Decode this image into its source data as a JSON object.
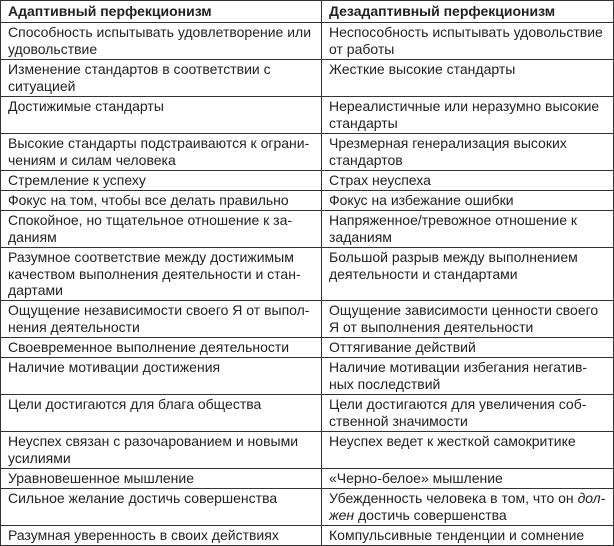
{
  "table": {
    "headers": [
      "Адаптивный перфекционизм",
      "Дезадаптивный перфекционизм"
    ],
    "rows": [
      [
        "Способность испытывать удовлетворение или\nудовольствие",
        "Неспособность испытывать удовольствие\nот работы"
      ],
      [
        "Изменение стандартов в соответствии с\nситуацией",
        "Жесткие высокие стандарты"
      ],
      [
        "Достижимые стандарты",
        "Нереалистичные или неразумно высокие\nстандарты"
      ],
      [
        "Высокие стандарты подстраиваются к ограни-\nчениям и силам человека",
        "Чрезмерная генерализация высоких\nстандартов"
      ],
      [
        "Стремление к успеху",
        "Страх неуспеха"
      ],
      [
        "Фокус на том, чтобы все делать правильно",
        "Фокус на избежание ошибки"
      ],
      [
        "Спокойное, но тщательное отношение к за-\nданиям",
        "Напряженное/тревожное отношение к\nзаданиям"
      ],
      [
        "Разумное соответствие между достижимым\nкачеством выполнения деятельности и стан-\nдартами",
        "Большой разрыв между выполнением\nдеятельности и стандартами"
      ],
      [
        "Ощущение независимости своего Я от выпол-\nнения деятельности",
        "Ощущение зависимости ценности своего\nЯ от выполнения деятельности"
      ],
      [
        "Своевременное выполнение деятельности",
        "Оттягивание действий"
      ],
      [
        "Наличие мотивации достижения",
        "Наличие мотивации избегания негатив-\nных последствий"
      ],
      [
        "Цели достигаются для блага общества",
        "Цели достигаются для увеличения соб-\nственной значимости"
      ],
      [
        "Неуспех связан с разочарованием и новыми\nусилиями",
        "Неуспех ведет к жесткой самокритике"
      ],
      [
        "Уравновешенное мышление",
        "«Черно-белое» мышление"
      ],
      [
        "Сильное желание достичь совершенства",
        ""
      ],
      [
        "Разумная уверенность в своих действиях",
        "Компульсивные тенденции и сомнение"
      ]
    ],
    "row15_right": {
      "before": "Убежденность человека в том, что он ",
      "italic": "дол-\nжен",
      "after": " достичь совершенства"
    }
  }
}
